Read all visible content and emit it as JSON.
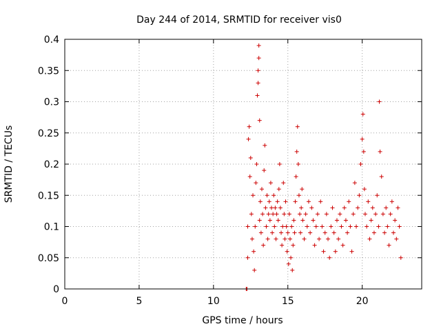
{
  "chart_data": {
    "type": "scatter",
    "title": "Day 244 of 2014, SRMTID for receiver vis0",
    "xlabel": "GPS time / hours",
    "ylabel": "SRMTID / TECUs",
    "xlim": [
      0,
      24
    ],
    "ylim": [
      0,
      0.4
    ],
    "grid": true,
    "xticks": [
      0,
      5,
      10,
      15,
      20
    ],
    "yticks": [
      0,
      0.05,
      0.1,
      0.15,
      0.2,
      0.25,
      0.3,
      0.35,
      0.4
    ],
    "xtick_labels": [
      "0",
      "5",
      "10",
      "15",
      "20"
    ],
    "ytick_labels": [
      "0",
      "0.05",
      "0.1",
      "0.15",
      "0.2",
      "0.25",
      "0.3",
      "0.35",
      "0.4"
    ],
    "marker": "+",
    "color": "#cc0000",
    "series": [
      {
        "name": "vis0",
        "points": [
          [
            12.2,
            0.0
          ],
          [
            12.25,
            0.0
          ],
          [
            12.3,
            0.05
          ],
          [
            12.3,
            0.1
          ],
          [
            12.35,
            0.24
          ],
          [
            12.4,
            0.26
          ],
          [
            12.45,
            0.18
          ],
          [
            12.5,
            0.21
          ],
          [
            12.55,
            0.12
          ],
          [
            12.6,
            0.08
          ],
          [
            12.65,
            0.15
          ],
          [
            12.7,
            0.06
          ],
          [
            12.75,
            0.03
          ],
          [
            12.8,
            0.1
          ],
          [
            12.85,
            0.17
          ],
          [
            12.9,
            0.2
          ],
          [
            12.95,
            0.31
          ],
          [
            13.0,
            0.33
          ],
          [
            13.0,
            0.35
          ],
          [
            13.05,
            0.39
          ],
          [
            13.05,
            0.37
          ],
          [
            13.1,
            0.27
          ],
          [
            13.1,
            0.11
          ],
          [
            13.15,
            0.14
          ],
          [
            13.2,
            0.09
          ],
          [
            13.25,
            0.16
          ],
          [
            13.3,
            0.12
          ],
          [
            13.35,
            0.07
          ],
          [
            13.4,
            0.19
          ],
          [
            13.45,
            0.23
          ],
          [
            13.5,
            0.13
          ],
          [
            13.55,
            0.1
          ],
          [
            13.6,
            0.15
          ],
          [
            13.65,
            0.08
          ],
          [
            13.7,
            0.12
          ],
          [
            13.75,
            0.14
          ],
          [
            13.8,
            0.11
          ],
          [
            13.85,
            0.17
          ],
          [
            13.9,
            0.13
          ],
          [
            13.95,
            0.09
          ],
          [
            14.0,
            0.12
          ],
          [
            14.05,
            0.15
          ],
          [
            14.1,
            0.1
          ],
          [
            14.15,
            0.13
          ],
          [
            14.2,
            0.08
          ],
          [
            14.25,
            0.12
          ],
          [
            14.3,
            0.14
          ],
          [
            14.35,
            0.11
          ],
          [
            14.4,
            0.16
          ],
          [
            14.45,
            0.2
          ],
          [
            14.5,
            0.13
          ],
          [
            14.55,
            0.09
          ],
          [
            14.6,
            0.07
          ],
          [
            14.65,
            0.1
          ],
          [
            14.7,
            0.17
          ],
          [
            14.75,
            0.12
          ],
          [
            14.8,
            0.08
          ],
          [
            14.85,
            0.14
          ],
          [
            14.9,
            0.1
          ],
          [
            14.95,
            0.06
          ],
          [
            15.0,
            0.09
          ],
          [
            15.05,
            0.04
          ],
          [
            15.1,
            0.12
          ],
          [
            15.15,
            0.08
          ],
          [
            15.2,
            0.05
          ],
          [
            15.25,
            0.1
          ],
          [
            15.3,
            0.03
          ],
          [
            15.35,
            0.07
          ],
          [
            15.4,
            0.11
          ],
          [
            15.45,
            0.09
          ],
          [
            15.5,
            0.14
          ],
          [
            15.55,
            0.18
          ],
          [
            15.6,
            0.22
          ],
          [
            15.65,
            0.26
          ],
          [
            15.7,
            0.2
          ],
          [
            15.75,
            0.15
          ],
          [
            15.8,
            0.12
          ],
          [
            15.85,
            0.09
          ],
          [
            15.9,
            0.13
          ],
          [
            15.95,
            0.16
          ],
          [
            16.0,
            0.11
          ],
          [
            16.1,
            0.08
          ],
          [
            16.2,
            0.12
          ],
          [
            16.3,
            0.1
          ],
          [
            16.4,
            0.14
          ],
          [
            16.5,
            0.09
          ],
          [
            16.6,
            0.13
          ],
          [
            16.7,
            0.11
          ],
          [
            16.8,
            0.07
          ],
          [
            16.9,
            0.1
          ],
          [
            17.0,
            0.12
          ],
          [
            17.1,
            0.08
          ],
          [
            17.2,
            0.14
          ],
          [
            17.3,
            0.1
          ],
          [
            17.4,
            0.06
          ],
          [
            17.5,
            0.09
          ],
          [
            17.6,
            0.12
          ],
          [
            17.7,
            0.08
          ],
          [
            17.8,
            0.05
          ],
          [
            17.9,
            0.1
          ],
          [
            18.0,
            0.13
          ],
          [
            18.1,
            0.09
          ],
          [
            18.2,
            0.06
          ],
          [
            18.3,
            0.11
          ],
          [
            18.4,
            0.08
          ],
          [
            18.5,
            0.12
          ],
          [
            18.6,
            0.1
          ],
          [
            18.7,
            0.07
          ],
          [
            18.8,
            0.13
          ],
          [
            18.9,
            0.11
          ],
          [
            19.0,
            0.09
          ],
          [
            19.1,
            0.14
          ],
          [
            19.2,
            0.1
          ],
          [
            19.3,
            0.06
          ],
          [
            19.4,
            0.12
          ],
          [
            19.5,
            0.17
          ],
          [
            19.6,
            0.1
          ],
          [
            19.7,
            0.13
          ],
          [
            19.8,
            0.15
          ],
          [
            19.9,
            0.2
          ],
          [
            20.0,
            0.24
          ],
          [
            20.05,
            0.28
          ],
          [
            20.1,
            0.22
          ],
          [
            20.15,
            0.16
          ],
          [
            20.2,
            0.12
          ],
          [
            20.3,
            0.1
          ],
          [
            20.4,
            0.14
          ],
          [
            20.5,
            0.08
          ],
          [
            20.6,
            0.11
          ],
          [
            20.7,
            0.13
          ],
          [
            20.8,
            0.09
          ],
          [
            20.9,
            0.12
          ],
          [
            21.0,
            0.15
          ],
          [
            21.1,
            0.1
          ],
          [
            21.15,
            0.3
          ],
          [
            21.2,
            0.22
          ],
          [
            21.3,
            0.18
          ],
          [
            21.4,
            0.12
          ],
          [
            21.5,
            0.09
          ],
          [
            21.6,
            0.13
          ],
          [
            21.7,
            0.1
          ],
          [
            21.8,
            0.07
          ],
          [
            21.9,
            0.12
          ],
          [
            22.0,
            0.14
          ],
          [
            22.1,
            0.09
          ],
          [
            22.2,
            0.11
          ],
          [
            22.3,
            0.08
          ],
          [
            22.4,
            0.13
          ],
          [
            22.5,
            0.1
          ],
          [
            22.6,
            0.05
          ]
        ]
      }
    ]
  }
}
